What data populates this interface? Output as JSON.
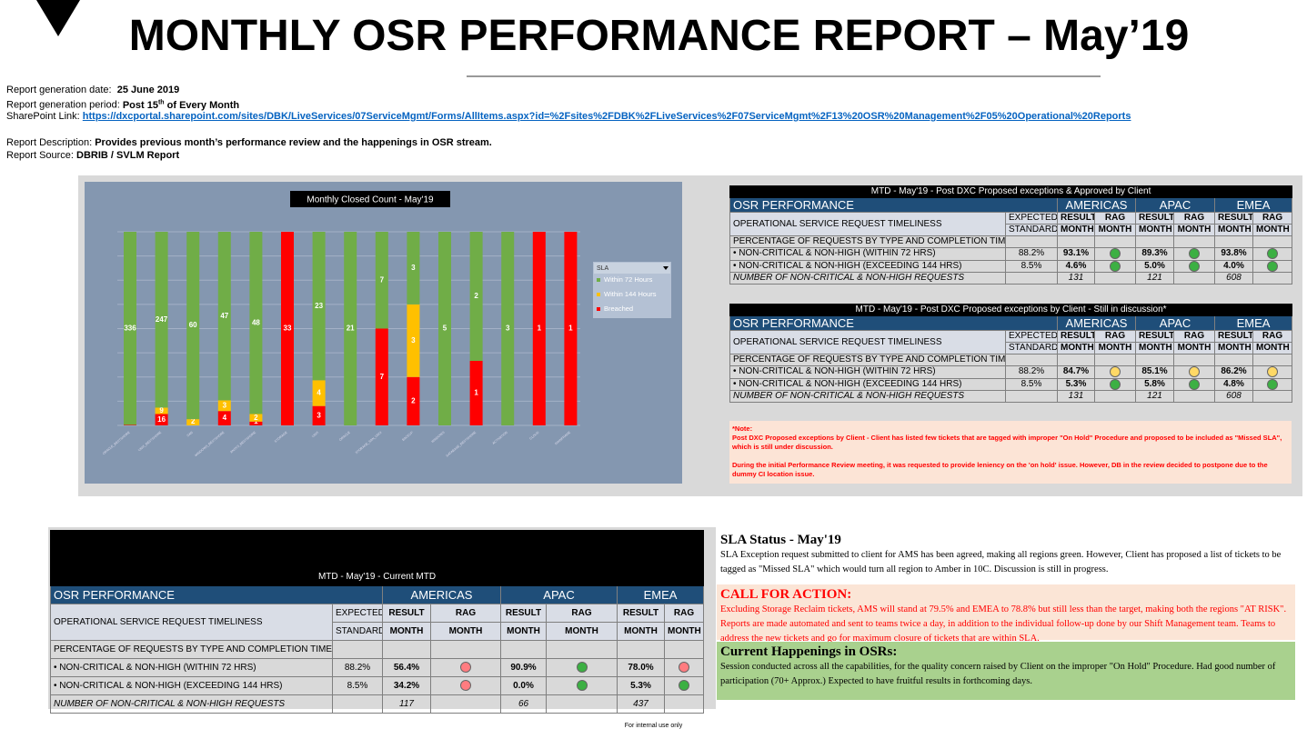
{
  "header": {
    "title": "MONTHLY OSR PERFORMANCE REPORT – May’19"
  },
  "meta": {
    "date_label": "Report generation date:",
    "date": "25 June 2019",
    "period_label": "Report generation period:",
    "period": "Post 15",
    "period_sup": "th",
    "period_rest": "of Every Month",
    "link_label": "SharePoint Link:",
    "link": "https://dxcportal.sharepoint.com/sites/DBK/LiveServices/07ServiceMgmt/Forms/AllItems.aspx?id=%2Fsites%2FDBK%2FLiveServices%2F07ServiceMgmt%2F13%20OSR%20Management%2F05%20Operational%20Reports",
    "desc_label": "Report Description:",
    "desc": "Provides previous month’s performance review and the happenings in OSR stream.",
    "source_label": "Report Source:",
    "source": "DBRIB / SVLM Report"
  },
  "chart_data": {
    "type": "bar",
    "stacked": "percent",
    "title": "Monthly Closed  Count - May'19",
    "legend_title": "SLA",
    "categories": [
      "ORACLE_BESTSHORE",
      "UNIX_BESTSHORE",
      "SAN",
      "WINDOWS_BESTSHORE",
      "ANSYS_BESTSHORE",
      "STORAGE",
      "UNIX",
      "ORACLE",
      "STORAGE_SAN_UNIX",
      "BACKUP",
      "WINDOWS",
      "DATABASE_BESTSHORE",
      "ACTIVATION",
      "CLOUD",
      "MAINFRAME"
    ],
    "series": [
      {
        "name": "Within 72 Hours",
        "color": "#70ad47",
        "values": [
          336,
          247,
          60,
          47,
          48,
          0,
          23,
          21,
          7,
          3,
          5,
          2,
          3,
          0,
          0
        ]
      },
      {
        "name": "Within 144 Hours",
        "color": "#ffc000",
        "values": [
          0,
          9,
          2,
          3,
          2,
          0,
          4,
          0,
          0,
          3,
          0,
          0,
          0,
          0,
          0
        ]
      },
      {
        "name": "Breached",
        "color": "#ff0000",
        "values": [
          1,
          16,
          0,
          4,
          1,
          33,
          3,
          0,
          7,
          2,
          0,
          1,
          0,
          1,
          1
        ]
      }
    ]
  },
  "tables": [
    {
      "caption": "MTD - May'19 - Post DXC Proposed exceptions & Approved by Client",
      "head": [
        "OSR PERFORMANCE",
        "AMERICAS",
        "APAC",
        "EMEA"
      ],
      "timeliness": "OPERATIONAL SERVICE REQUEST TIMELINESS",
      "sub1": [
        "EXPECTED",
        "RESULT",
        "RAG",
        "RESULT",
        "RAG",
        "RESULT",
        "RAG"
      ],
      "sub2": [
        "STANDARD",
        "MONTH",
        "MONTH",
        "MONTH",
        "MONTH",
        "MONTH",
        "MONTH"
      ],
      "section": "PERCENTAGE OF REQUESTS BY TYPE AND COMPLETION TIME",
      "rows": [
        {
          "label": "• NON-CRITICAL & NON-HIGH (WITHIN 72 HRS)",
          "expected": "88.2%",
          "results": [
            "93.1%",
            "89.3%",
            "93.8%"
          ],
          "rag": [
            "#3cb043",
            "#3cb043",
            "#3cb043"
          ]
        },
        {
          "label": "• NON-CRITICAL & NON-HIGH (EXCEEDING 144 HRS)",
          "expected": "8.5%",
          "results": [
            "4.6%",
            "5.0%",
            "4.0%"
          ],
          "rag": [
            "#3cb043",
            "#3cb043",
            "#3cb043"
          ]
        }
      ],
      "count": {
        "label": "NUMBER OF NON-CRITICAL & NON-HIGH REQUESTS",
        "values": [
          "131",
          "121",
          "608"
        ]
      }
    },
    {
      "caption": "MTD - May'19 - Post DXC Proposed  exceptions by Client - Still in discussion*",
      "head": [
        "OSR PERFORMANCE",
        "AMERICAS",
        "APAC",
        "EMEA"
      ],
      "timeliness": "OPERATIONAL SERVICE REQUEST TIMELINESS",
      "sub1": [
        "EXPECTED",
        "RESULT",
        "RAG",
        "RESULT",
        "RAG",
        "RESULT",
        "RAG"
      ],
      "sub2": [
        "STANDARD",
        "MONTH",
        "MONTH",
        "MONTH",
        "MONTH",
        "MONTH",
        "MONTH"
      ],
      "section": "PERCENTAGE OF REQUESTS BY TYPE AND COMPLETION TIME",
      "rows": [
        {
          "label": "• NON-CRITICAL & NON-HIGH (WITHIN 72 HRS)",
          "expected": "88.2%",
          "results": [
            "84.7%",
            "85.1%",
            "86.2%"
          ],
          "rag": [
            "#ffd966",
            "#ffd966",
            "#ffd966"
          ]
        },
        {
          "label": "• NON-CRITICAL & NON-HIGH (EXCEEDING 144 HRS)",
          "expected": "8.5%",
          "results": [
            "5.3%",
            "5.8%",
            "4.8%"
          ],
          "rag": [
            "#3cb043",
            "#3cb043",
            "#3cb043"
          ]
        }
      ],
      "count": {
        "label": "NUMBER OF NON-CRITICAL & NON-HIGH REQUESTS",
        "values": [
          "131",
          "121",
          "608"
        ]
      }
    },
    {
      "caption": "MTD - May'19 -  Current MTD",
      "head": [
        "OSR PERFORMANCE",
        "AMERICAS",
        "APAC",
        "EMEA"
      ],
      "timeliness": "OPERATIONAL SERVICE REQUEST TIMELINESS",
      "sub1": [
        "EXPECTED",
        "RESULT",
        "RAG",
        "RESULT",
        "RAG",
        "RESULT",
        "RAG"
      ],
      "sub2": [
        "STANDARD",
        "MONTH",
        "MONTH",
        "MONTH",
        "MONTH",
        "MONTH",
        "MONTH"
      ],
      "section": "PERCENTAGE OF REQUESTS BY TYPE AND COMPLETION TIME",
      "rows": [
        {
          "label": "• NON-CRITICAL & NON-HIGH (WITHIN 72 HRS)",
          "expected": "88.2%",
          "results": [
            "56.4%",
            "90.9%",
            "78.0%"
          ],
          "rag": [
            "#ff7c80",
            "#3cb043",
            "#ff7c80"
          ]
        },
        {
          "label": "• NON-CRITICAL & NON-HIGH (EXCEEDING 144 HRS)",
          "expected": "8.5%",
          "results": [
            "34.2%",
            "0.0%",
            "5.3%"
          ],
          "rag": [
            "#ff7c80",
            "#3cb043",
            "#3cb043"
          ]
        }
      ],
      "count": {
        "label": "NUMBER OF NON-CRITICAL & NON-HIGH REQUESTS",
        "values": [
          "117",
          "66",
          "437"
        ]
      }
    }
  ],
  "note": {
    "title": "*Note:",
    "p1": "Post DXC Proposed  exceptions by Client  -  Client has listed few tickets that are tagged with improper \"On Hold\" Procedure and proposed to be included as \"Missed SLA\", which is still under discussion.",
    "p2": "During the initial Performance Review meeting, it was requested to provide leniency on the 'on hold' issue. However, DB in the  review decided to postpone  due to the dummy CI location issue."
  },
  "status": [
    {
      "title": "SLA Status - May'19",
      "text": "SLA Exception request submitted to client for AMS has been agreed, making all regions green. However, Client has proposed a list of tickets to be tagged as \"Missed SLA\" which would turn all region to Amber in 10C. Discussion is still in progress."
    },
    {
      "title": "CALL FOR ACTION:",
      "text": "Excluding Storage Reclaim tickets, AMS will stand at 79.5% and EMEA to 78.8% but still less than the target, making both the regions \"AT RISK\". Reports are made automated and sent to teams twice a day, in addition to the individual follow-up done by our Shift Management team. Teams to address the new tickets and go for maximum closure of tickets that are within SLA."
    },
    {
      "title": "Current Happenings in OSRs:",
      "text": "Session conducted across all the capabilities, for the quality concern raised by Client on the improper \"On Hold\" Procedure. Had good number of participation (70+ Approx.) Expected to have fruitful results in forthcoming days."
    }
  ],
  "footer": "For internal use only"
}
